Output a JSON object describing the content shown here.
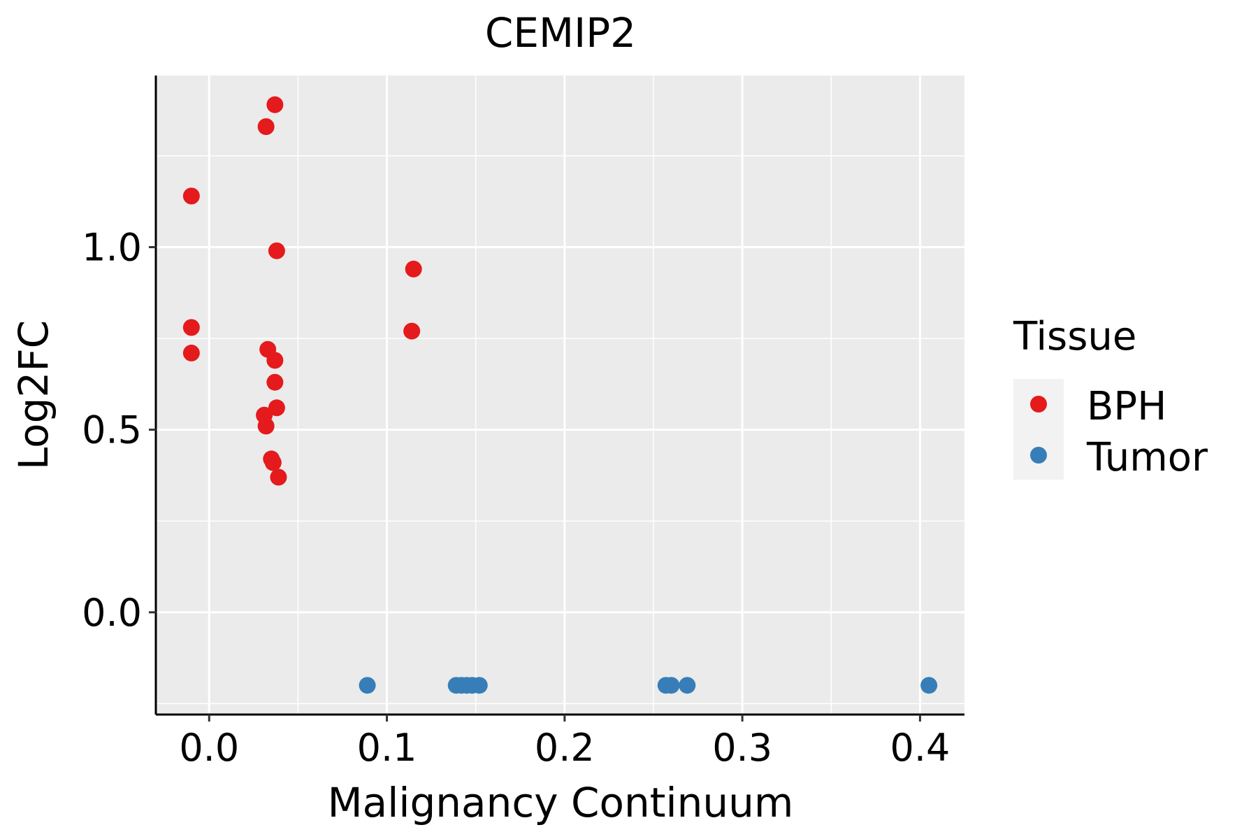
{
  "chart_data": {
    "type": "scatter",
    "title": "CEMIP2",
    "xlabel": "Malignancy Continuum",
    "ylabel": "Log2FC",
    "xlim": [
      -0.03,
      0.425
    ],
    "ylim": [
      -0.28,
      1.47
    ],
    "x_ticks": [
      0.0,
      0.1,
      0.2,
      0.3,
      0.4
    ],
    "x_tick_labels": [
      "0.0",
      "0.1",
      "0.2",
      "0.3",
      "0.4"
    ],
    "y_ticks": [
      0.0,
      0.5,
      1.0
    ],
    "y_tick_labels": [
      "0.0",
      "0.5",
      "1.0"
    ],
    "grid": true,
    "legend": {
      "title": "Tissue",
      "position": "right"
    },
    "series": [
      {
        "name": "BPH",
        "color": "#E41A1C",
        "points": [
          {
            "x": 0.037,
            "y": 1.39
          },
          {
            "x": 0.032,
            "y": 1.33
          },
          {
            "x": -0.01,
            "y": 1.14
          },
          {
            "x": 0.038,
            "y": 0.99
          },
          {
            "x": -0.01,
            "y": 0.78
          },
          {
            "x": -0.01,
            "y": 0.71
          },
          {
            "x": 0.033,
            "y": 0.72
          },
          {
            "x": 0.037,
            "y": 0.69
          },
          {
            "x": 0.037,
            "y": 0.63
          },
          {
            "x": 0.038,
            "y": 0.56
          },
          {
            "x": 0.031,
            "y": 0.54
          },
          {
            "x": 0.032,
            "y": 0.51
          },
          {
            "x": 0.035,
            "y": 0.42
          },
          {
            "x": 0.036,
            "y": 0.41
          },
          {
            "x": 0.039,
            "y": 0.37
          },
          {
            "x": 0.115,
            "y": 0.94
          },
          {
            "x": 0.114,
            "y": 0.77
          }
        ]
      },
      {
        "name": "Tumor",
        "color": "#377EB8",
        "points": [
          {
            "x": 0.089,
            "y": -0.2
          },
          {
            "x": 0.139,
            "y": -0.2
          },
          {
            "x": 0.142,
            "y": -0.2
          },
          {
            "x": 0.145,
            "y": -0.2
          },
          {
            "x": 0.148,
            "y": -0.2
          },
          {
            "x": 0.152,
            "y": -0.2
          },
          {
            "x": 0.257,
            "y": -0.2
          },
          {
            "x": 0.26,
            "y": -0.2
          },
          {
            "x": 0.269,
            "y": -0.2
          },
          {
            "x": 0.405,
            "y": -0.2
          }
        ]
      }
    ]
  }
}
